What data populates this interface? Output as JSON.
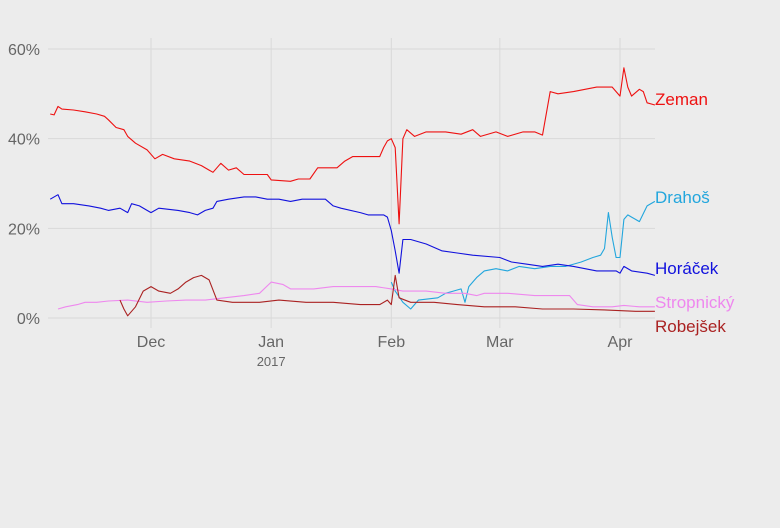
{
  "chart_data": {
    "type": "line",
    "title": "",
    "xlabel": "",
    "ylabel": "",
    "xlim": [
      "2016-11-05",
      "2017-04-10"
    ],
    "ylim": [
      0,
      62
    ],
    "yticks": [
      {
        "value": 0,
        "label": "0%"
      },
      {
        "value": 20,
        "label": "20%"
      },
      {
        "value": 40,
        "label": "40%"
      },
      {
        "value": 60,
        "label": "60%"
      }
    ],
    "xticks": [
      {
        "date": "2016-12-01",
        "label": "Dec"
      },
      {
        "date": "2017-01-01",
        "label": "Jan",
        "sublabel": "2017"
      },
      {
        "date": "2017-02-01",
        "label": "Feb"
      },
      {
        "date": "2017-03-01",
        "label": "Mar"
      },
      {
        "date": "2017-04-01",
        "label": "Apr"
      }
    ],
    "grid": true,
    "legend": "direct labels at line ends (right)",
    "series": [
      {
        "name": "Zeman",
        "color": "#ee1111",
        "points": [
          [
            "2016-11-05",
            45.5
          ],
          [
            "2016-11-06",
            45.3
          ],
          [
            "2016-11-07",
            47.2
          ],
          [
            "2016-11-08",
            46.6
          ],
          [
            "2016-11-11",
            46.4
          ],
          [
            "2016-11-14",
            46.0
          ],
          [
            "2016-11-17",
            45.5
          ],
          [
            "2016-11-19",
            45.0
          ],
          [
            "2016-11-20",
            44.2
          ],
          [
            "2016-11-22",
            42.5
          ],
          [
            "2016-11-24",
            42.0
          ],
          [
            "2016-11-25",
            40.5
          ],
          [
            "2016-11-27",
            39.0
          ],
          [
            "2016-11-30",
            37.5
          ],
          [
            "2016-12-02",
            35.5
          ],
          [
            "2016-12-04",
            36.5
          ],
          [
            "2016-12-07",
            35.5
          ],
          [
            "2016-12-11",
            35.0
          ],
          [
            "2016-12-14",
            34.0
          ],
          [
            "2016-12-16",
            33.0
          ],
          [
            "2016-12-17",
            32.5
          ],
          [
            "2016-12-19",
            34.5
          ],
          [
            "2016-12-21",
            33.0
          ],
          [
            "2016-12-23",
            33.5
          ],
          [
            "2016-12-25",
            32.0
          ],
          [
            "2016-12-31",
            32.0
          ],
          [
            "2017-01-01",
            30.8
          ],
          [
            "2017-01-06",
            30.5
          ],
          [
            "2017-01-08",
            31.0
          ],
          [
            "2017-01-11",
            31.0
          ],
          [
            "2017-01-13",
            33.5
          ],
          [
            "2017-01-18",
            33.5
          ],
          [
            "2017-01-20",
            35.0
          ],
          [
            "2017-01-22",
            36.0
          ],
          [
            "2017-01-29",
            36.0
          ],
          [
            "2017-01-30",
            38.0
          ],
          [
            "2017-01-31",
            39.5
          ],
          [
            "2017-02-01",
            40.0
          ],
          [
            "2017-02-02",
            38.0
          ],
          [
            "2017-02-03",
            21.0
          ],
          [
            "2017-02-04",
            40.0
          ],
          [
            "2017-02-05",
            42.0
          ],
          [
            "2017-02-07",
            40.5
          ],
          [
            "2017-02-10",
            41.5
          ],
          [
            "2017-02-15",
            41.5
          ],
          [
            "2017-02-19",
            41.0
          ],
          [
            "2017-02-22",
            42.0
          ],
          [
            "2017-02-24",
            40.5
          ],
          [
            "2017-02-28",
            41.5
          ],
          [
            "2017-03-03",
            40.5
          ],
          [
            "2017-03-07",
            41.5
          ],
          [
            "2017-03-10",
            41.5
          ],
          [
            "2017-03-12",
            40.8
          ],
          [
            "2017-03-14",
            50.5
          ],
          [
            "2017-03-16",
            50.0
          ],
          [
            "2017-03-20",
            50.5
          ],
          [
            "2017-03-23",
            51.0
          ],
          [
            "2017-03-26",
            51.5
          ],
          [
            "2017-03-30",
            51.5
          ],
          [
            "2017-04-01",
            49.5
          ],
          [
            "2017-04-02",
            55.8
          ],
          [
            "2017-04-03",
            51.5
          ],
          [
            "2017-04-04",
            49.5
          ],
          [
            "2017-04-06",
            51.0
          ],
          [
            "2017-04-07",
            50.5
          ],
          [
            "2017-04-08",
            48.0
          ],
          [
            "2017-04-10",
            47.5
          ]
        ]
      },
      {
        "name": "Drahoš",
        "color": "#22a6dd",
        "points": [
          [
            "2017-02-01",
            8.0
          ],
          [
            "2017-02-02",
            6.0
          ],
          [
            "2017-02-04",
            3.5
          ],
          [
            "2017-02-06",
            2.0
          ],
          [
            "2017-02-08",
            4.0
          ],
          [
            "2017-02-13",
            4.5
          ],
          [
            "2017-02-15",
            5.5
          ],
          [
            "2017-02-17",
            6.0
          ],
          [
            "2017-02-19",
            6.5
          ],
          [
            "2017-02-20",
            3.5
          ],
          [
            "2017-02-21",
            7.0
          ],
          [
            "2017-02-23",
            9.0
          ],
          [
            "2017-02-25",
            10.5
          ],
          [
            "2017-02-28",
            11.0
          ],
          [
            "2017-03-03",
            10.5
          ],
          [
            "2017-03-06",
            11.5
          ],
          [
            "2017-03-10",
            11.0
          ],
          [
            "2017-03-14",
            11.5
          ],
          [
            "2017-03-18",
            11.5
          ],
          [
            "2017-03-22",
            12.5
          ],
          [
            "2017-03-25",
            13.5
          ],
          [
            "2017-03-27",
            14.0
          ],
          [
            "2017-03-28",
            15.5
          ],
          [
            "2017-03-29",
            23.5
          ],
          [
            "2017-03-30",
            18.0
          ],
          [
            "2017-03-31",
            13.5
          ],
          [
            "2017-04-01",
            13.5
          ],
          [
            "2017-04-02",
            22.0
          ],
          [
            "2017-04-03",
            23.0
          ],
          [
            "2017-04-04",
            22.5
          ],
          [
            "2017-04-06",
            21.5
          ],
          [
            "2017-04-08",
            25.0
          ],
          [
            "2017-04-10",
            26.0
          ]
        ]
      },
      {
        "name": "Horáček",
        "color": "#1111dd",
        "points": [
          [
            "2016-11-05",
            26.5
          ],
          [
            "2016-11-07",
            27.5
          ],
          [
            "2016-11-08",
            25.5
          ],
          [
            "2016-11-11",
            25.5
          ],
          [
            "2016-11-15",
            25.0
          ],
          [
            "2016-11-18",
            24.5
          ],
          [
            "2016-11-20",
            24.0
          ],
          [
            "2016-11-23",
            24.5
          ],
          [
            "2016-11-25",
            23.5
          ],
          [
            "2016-11-26",
            25.5
          ],
          [
            "2016-11-28",
            25.0
          ],
          [
            "2016-11-30",
            24.0
          ],
          [
            "2016-12-01",
            23.5
          ],
          [
            "2016-12-03",
            24.5
          ],
          [
            "2016-12-08",
            24.0
          ],
          [
            "2016-12-11",
            23.5
          ],
          [
            "2016-12-13",
            23.0
          ],
          [
            "2016-12-15",
            24.0
          ],
          [
            "2016-12-17",
            24.5
          ],
          [
            "2016-12-18",
            26.0
          ],
          [
            "2016-12-21",
            26.5
          ],
          [
            "2016-12-25",
            27.0
          ],
          [
            "2016-12-28",
            27.0
          ],
          [
            "2016-12-31",
            26.5
          ],
          [
            "2017-01-03",
            26.5
          ],
          [
            "2017-01-06",
            26.0
          ],
          [
            "2017-01-09",
            26.5
          ],
          [
            "2017-01-15",
            26.5
          ],
          [
            "2017-01-17",
            25.0
          ],
          [
            "2017-01-19",
            24.5
          ],
          [
            "2017-01-24",
            23.5
          ],
          [
            "2017-01-26",
            23.0
          ],
          [
            "2017-01-30",
            23.0
          ],
          [
            "2017-01-31",
            22.5
          ],
          [
            "2017-02-01",
            19.5
          ],
          [
            "2017-02-02",
            15.0
          ],
          [
            "2017-02-03",
            10.0
          ],
          [
            "2017-02-04",
            17.5
          ],
          [
            "2017-02-06",
            17.5
          ],
          [
            "2017-02-10",
            16.5
          ],
          [
            "2017-02-14",
            15.0
          ],
          [
            "2017-02-18",
            14.5
          ],
          [
            "2017-02-22",
            14.0
          ],
          [
            "2017-03-01",
            13.5
          ],
          [
            "2017-03-04",
            12.5
          ],
          [
            "2017-03-08",
            12.0
          ],
          [
            "2017-03-12",
            11.5
          ],
          [
            "2017-03-16",
            12.0
          ],
          [
            "2017-03-20",
            11.5
          ],
          [
            "2017-03-23",
            11.0
          ],
          [
            "2017-03-26",
            10.5
          ],
          [
            "2017-03-31",
            10.5
          ],
          [
            "2017-04-01",
            10.0
          ],
          [
            "2017-04-02",
            11.5
          ],
          [
            "2017-04-04",
            10.5
          ],
          [
            "2017-04-08",
            10.0
          ],
          [
            "2017-04-10",
            9.5
          ]
        ]
      },
      {
        "name": "Stropnický",
        "color": "#ee88ee",
        "points": [
          [
            "2016-11-07",
            2.0
          ],
          [
            "2016-11-09",
            2.5
          ],
          [
            "2016-11-12",
            3.0
          ],
          [
            "2016-11-14",
            3.5
          ],
          [
            "2016-11-17",
            3.5
          ],
          [
            "2016-11-20",
            3.8
          ],
          [
            "2016-11-25",
            4.0
          ],
          [
            "2016-11-30",
            3.5
          ],
          [
            "2016-12-05",
            3.8
          ],
          [
            "2016-12-10",
            4.0
          ],
          [
            "2016-12-15",
            4.0
          ],
          [
            "2016-12-20",
            4.5
          ],
          [
            "2016-12-25",
            5.0
          ],
          [
            "2016-12-29",
            5.5
          ],
          [
            "2017-01-01",
            8.0
          ],
          [
            "2017-01-04",
            7.5
          ],
          [
            "2017-01-06",
            6.5
          ],
          [
            "2017-01-12",
            6.5
          ],
          [
            "2017-01-17",
            7.0
          ],
          [
            "2017-01-22",
            7.0
          ],
          [
            "2017-01-28",
            7.0
          ],
          [
            "2017-02-01",
            6.5
          ],
          [
            "2017-02-04",
            6.0
          ],
          [
            "2017-02-10",
            6.0
          ],
          [
            "2017-02-15",
            5.5
          ],
          [
            "2017-02-20",
            5.5
          ],
          [
            "2017-02-23",
            5.0
          ],
          [
            "2017-02-25",
            5.5
          ],
          [
            "2017-03-03",
            5.5
          ],
          [
            "2017-03-10",
            5.0
          ],
          [
            "2017-03-19",
            5.0
          ],
          [
            "2017-03-21",
            3.0
          ],
          [
            "2017-03-25",
            2.5
          ],
          [
            "2017-03-30",
            2.5
          ],
          [
            "2017-04-02",
            2.8
          ],
          [
            "2017-04-06",
            2.5
          ],
          [
            "2017-04-10",
            2.5
          ]
        ]
      },
      {
        "name": "Robejšek",
        "color": "#aa2222",
        "points": [
          [
            "2016-11-23",
            4.0
          ],
          [
            "2016-11-24",
            2.0
          ],
          [
            "2016-11-25",
            0.5
          ],
          [
            "2016-11-27",
            2.5
          ],
          [
            "2016-11-29",
            6.0
          ],
          [
            "2016-12-01",
            7.0
          ],
          [
            "2016-12-03",
            6.0
          ],
          [
            "2016-12-06",
            5.5
          ],
          [
            "2016-12-08",
            6.5
          ],
          [
            "2016-12-10",
            8.0
          ],
          [
            "2016-12-12",
            9.0
          ],
          [
            "2016-12-14",
            9.5
          ],
          [
            "2016-12-16",
            8.5
          ],
          [
            "2016-12-18",
            4.0
          ],
          [
            "2016-12-22",
            3.5
          ],
          [
            "2016-12-29",
            3.5
          ],
          [
            "2017-01-03",
            4.0
          ],
          [
            "2017-01-10",
            3.5
          ],
          [
            "2017-01-17",
            3.5
          ],
          [
            "2017-01-24",
            3.0
          ],
          [
            "2017-01-29",
            3.0
          ],
          [
            "2017-01-31",
            4.0
          ],
          [
            "2017-02-01",
            3.0
          ],
          [
            "2017-02-02",
            9.5
          ],
          [
            "2017-02-03",
            4.5
          ],
          [
            "2017-02-06",
            3.5
          ],
          [
            "2017-02-12",
            3.5
          ],
          [
            "2017-02-18",
            3.0
          ],
          [
            "2017-02-25",
            2.5
          ],
          [
            "2017-03-05",
            2.5
          ],
          [
            "2017-03-12",
            2.0
          ],
          [
            "2017-03-20",
            2.0
          ],
          [
            "2017-03-28",
            1.8
          ],
          [
            "2017-04-05",
            1.5
          ],
          [
            "2017-04-10",
            1.5
          ]
        ]
      }
    ]
  }
}
